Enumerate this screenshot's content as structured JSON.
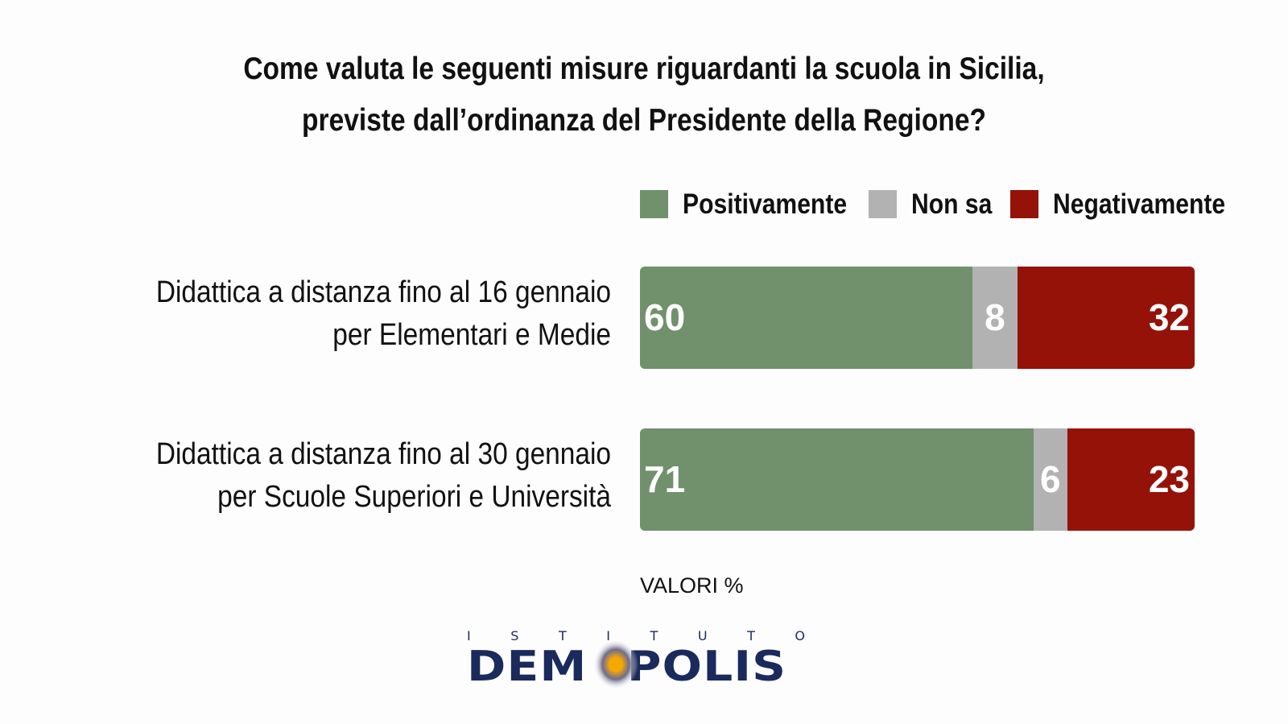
{
  "chart_data": {
    "type": "bar",
    "orientation": "horizontal",
    "stacked": true,
    "title": [
      "Come valuta le seguenti misure riguardanti la scuola in Sicilia,",
      "previste dall’ordinanza del Presidente della Regione?"
    ],
    "categories": [
      [
        "Didattica a distanza fino al 16 gennaio",
        "per Elementari e Medie"
      ],
      [
        "Didattica a distanza fino al 30 gennaio",
        "per Scuole Superiori e Università"
      ]
    ],
    "series": [
      {
        "name": "Positivamente",
        "color": "#70916b",
        "values": [
          60,
          71
        ]
      },
      {
        "name": "Non sa",
        "color": "#b2b2b2",
        "values": [
          8,
          6
        ]
      },
      {
        "name": "Negativamente",
        "color": "#951209",
        "values": [
          32,
          23
        ]
      }
    ],
    "xlim": [
      0,
      100
    ],
    "legend_position": "top-right",
    "footnote": "VALORI %"
  },
  "logo": {
    "small": "ISTITUTO",
    "big_left": "DEM",
    "big_right": "POLIS"
  }
}
